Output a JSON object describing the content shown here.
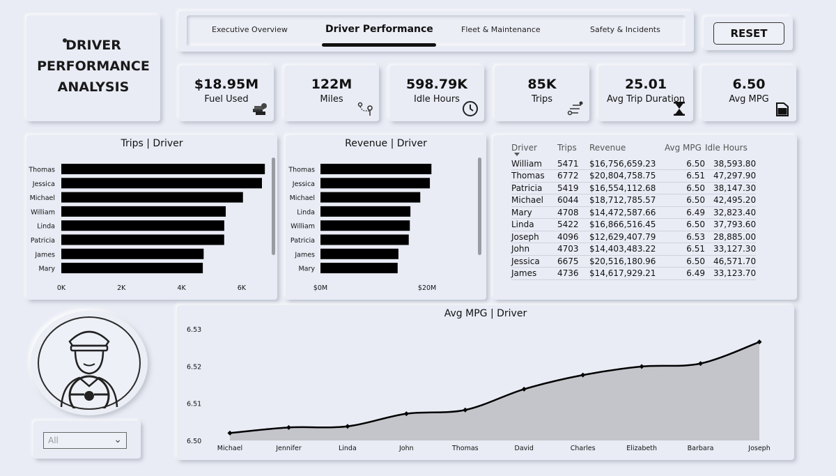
{
  "title": "DRIVER PERFORMANCE ANALYSIS",
  "title_lines": [
    "DRIVER",
    "PERFORMANCE",
    "ANALYSIS"
  ],
  "nav": {
    "tabs": [
      {
        "label": "Executive Overview",
        "active": false
      },
      {
        "label": "Driver Performance",
        "active": true
      },
      {
        "label": "Fleet & Maintenance",
        "active": false
      },
      {
        "label": "Safety & Incidents",
        "active": false
      }
    ]
  },
  "reset_label": "RESET",
  "kpis": [
    {
      "value": "$18.95M",
      "label": "Fuel Used",
      "icon": "money-stack-icon"
    },
    {
      "value": "122M",
      "label": "Miles",
      "icon": "route-pin-icon"
    },
    {
      "value": "598.79K",
      "label": "Idle Hours",
      "icon": "clock-icon"
    },
    {
      "value": "85K",
      "label": "Trips",
      "icon": "route-steps-icon"
    },
    {
      "value": "25.01",
      "label": "Avg Trip Duration",
      "icon": "hourglass-icon"
    },
    {
      "value": "6.50",
      "label": "Avg MPG",
      "icon": "fuel-can-icon"
    }
  ],
  "slicer": {
    "value": "All"
  },
  "table": {
    "columns": [
      "Driver",
      "Trips",
      "Revenue",
      "Avg MPG",
      "Idle Hours"
    ],
    "rows": [
      [
        "William",
        "5471",
        "$16,756,659.23",
        "6.50",
        "38,593.80"
      ],
      [
        "Thomas",
        "6772",
        "$20,804,758.75",
        "6.51",
        "47,297.90"
      ],
      [
        "Patricia",
        "5419",
        "$16,554,112.68",
        "6.50",
        "38,147.30"
      ],
      [
        "Michael",
        "6044",
        "$18,712,785.57",
        "6.50",
        "42,495.20"
      ],
      [
        "Mary",
        "4708",
        "$14,472,587.66",
        "6.49",
        "32,823.40"
      ],
      [
        "Linda",
        "5422",
        "$16,866,516.45",
        "6.50",
        "37,793.60"
      ],
      [
        "Joseph",
        "4096",
        "$12,629,407.79",
        "6.53",
        "28,885.00"
      ],
      [
        "John",
        "4703",
        "$14,403,483.22",
        "6.51",
        "33,127.30"
      ],
      [
        "Jessica",
        "6675",
        "$20,516,180.96",
        "6.50",
        "46,571.70"
      ],
      [
        "James",
        "4736",
        "$14,617,929.21",
        "6.49",
        "33,123.70"
      ]
    ]
  },
  "chart_data": [
    {
      "type": "bar",
      "orientation": "horizontal",
      "title": "Trips | Driver",
      "categories": [
        "Thomas",
        "Jessica",
        "Michael",
        "William",
        "Linda",
        "Patricia",
        "James",
        "Mary"
      ],
      "values": [
        6772,
        6675,
        6044,
        5471,
        5422,
        5419,
        4736,
        4708
      ],
      "xlim": [
        0,
        7000
      ],
      "ticks": [
        0,
        2000,
        4000,
        6000
      ],
      "tick_labels": [
        "0K",
        "2K",
        "4K",
        "6K"
      ],
      "color": "#000000"
    },
    {
      "type": "bar",
      "orientation": "horizontal",
      "title": "Revenue | Driver",
      "categories": [
        "Thomas",
        "Jessica",
        "Michael",
        "Linda",
        "William",
        "Patricia",
        "James",
        "Mary"
      ],
      "values": [
        20804758.75,
        20516180.96,
        18712785.57,
        16866516.45,
        16756659.23,
        16554112.68,
        14617929.21,
        14472587.66
      ],
      "xlim": [
        0,
        29000000
      ],
      "ticks": [
        0,
        20000000
      ],
      "tick_labels": [
        "$0M",
        "$20M"
      ],
      "color": "#000000"
    },
    {
      "type": "area",
      "title": "Avg MPG | Driver",
      "categories": [
        "Michael",
        "Jennifer",
        "Linda",
        "John",
        "Thomas",
        "David",
        "Charles",
        "Elizabeth",
        "Barbara",
        "Joseph"
      ],
      "values": [
        6.502,
        6.5035,
        6.5038,
        6.5072,
        6.5082,
        6.5138,
        6.5176,
        6.5199,
        6.5207,
        6.5265
      ],
      "ylim": [
        6.5,
        6.53
      ],
      "ticks": [
        6.5,
        6.51,
        6.52,
        6.53
      ],
      "tick_labels": [
        "6.50",
        "6.51",
        "6.52",
        "6.53"
      ],
      "fill": "#c4c5cb",
      "line": "#000000"
    }
  ]
}
